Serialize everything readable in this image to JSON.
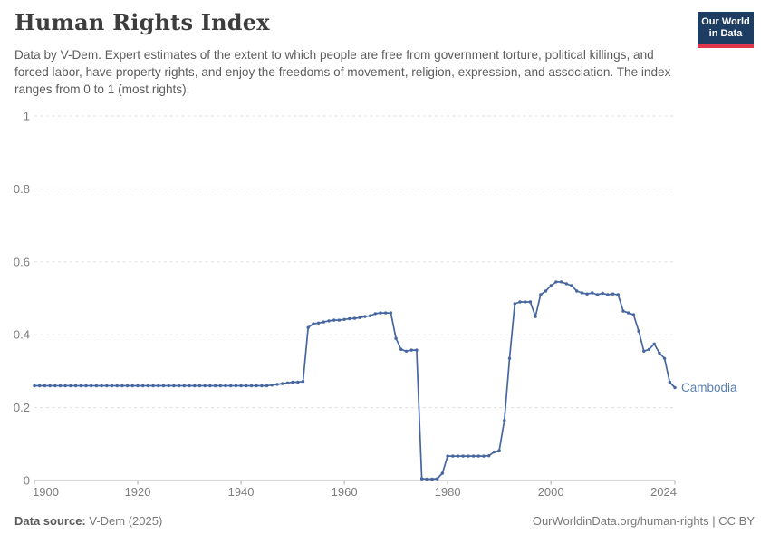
{
  "header": {
    "title": "Human Rights Index",
    "subtitle": "Data by V-Dem. Expert estimates of the extent to which people are free from government torture, political killings, and forced labor, have property rights, and enjoy the freedoms of movement, religion, expression, and association. The index ranges from 0 to 1 (most rights).",
    "logo": {
      "line1": "Our World",
      "line2": "in Data",
      "bg_color": "#1d3d63",
      "accent_color": "#e0354b"
    }
  },
  "chart_data": {
    "type": "line",
    "title": "Human Rights Index",
    "xlabel": "",
    "ylabel": "",
    "xlim": [
      1900,
      2024
    ],
    "ylim": [
      0,
      1
    ],
    "x_ticks": [
      1900,
      1920,
      1940,
      1960,
      1980,
      2000,
      2024
    ],
    "y_ticks": [
      0,
      0.2,
      0.4,
      0.6,
      0.8,
      1
    ],
    "grid": "horizontal-dashed",
    "legend_position": "end-of-line-label",
    "colors": {
      "line": "#4666a0",
      "end_label": "#5b80b2",
      "grid": "#e0e0e0",
      "axis": "#a8a8a8",
      "tick_text": "#7d7d7d"
    },
    "series": [
      {
        "name": "Cambodia",
        "x": [
          1900,
          1901,
          1902,
          1903,
          1904,
          1905,
          1906,
          1907,
          1908,
          1909,
          1910,
          1911,
          1912,
          1913,
          1914,
          1915,
          1916,
          1917,
          1918,
          1919,
          1920,
          1921,
          1922,
          1923,
          1924,
          1925,
          1926,
          1927,
          1928,
          1929,
          1930,
          1931,
          1932,
          1933,
          1934,
          1935,
          1936,
          1937,
          1938,
          1939,
          1940,
          1941,
          1942,
          1943,
          1944,
          1945,
          1946,
          1947,
          1948,
          1949,
          1950,
          1951,
          1952,
          1953,
          1954,
          1955,
          1956,
          1957,
          1958,
          1959,
          1960,
          1961,
          1962,
          1963,
          1964,
          1965,
          1966,
          1967,
          1968,
          1969,
          1970,
          1971,
          1972,
          1973,
          1974,
          1975,
          1976,
          1977,
          1978,
          1979,
          1980,
          1981,
          1982,
          1983,
          1984,
          1985,
          1986,
          1987,
          1988,
          1989,
          1990,
          1991,
          1992,
          1993,
          1994,
          1995,
          1996,
          1997,
          1998,
          1999,
          2000,
          2001,
          2002,
          2003,
          2004,
          2005,
          2006,
          2007,
          2008,
          2009,
          2010,
          2011,
          2012,
          2013,
          2014,
          2015,
          2016,
          2017,
          2018,
          2019,
          2020,
          2021,
          2022,
          2023,
          2024
        ],
        "values": [
          0.26,
          0.26,
          0.26,
          0.26,
          0.26,
          0.26,
          0.26,
          0.26,
          0.26,
          0.26,
          0.26,
          0.26,
          0.26,
          0.26,
          0.26,
          0.26,
          0.26,
          0.26,
          0.26,
          0.26,
          0.26,
          0.26,
          0.26,
          0.26,
          0.26,
          0.26,
          0.26,
          0.26,
          0.26,
          0.26,
          0.26,
          0.26,
          0.26,
          0.26,
          0.26,
          0.26,
          0.26,
          0.26,
          0.26,
          0.26,
          0.26,
          0.26,
          0.26,
          0.26,
          0.26,
          0.26,
          0.262,
          0.264,
          0.266,
          0.268,
          0.27,
          0.27,
          0.272,
          0.42,
          0.43,
          0.432,
          0.435,
          0.438,
          0.44,
          0.44,
          0.442,
          0.444,
          0.445,
          0.447,
          0.45,
          0.452,
          0.458,
          0.46,
          0.46,
          0.46,
          0.39,
          0.36,
          0.355,
          0.358,
          0.358,
          0.005,
          0.004,
          0.004,
          0.005,
          0.02,
          0.067,
          0.067,
          0.067,
          0.067,
          0.067,
          0.067,
          0.067,
          0.067,
          0.068,
          0.078,
          0.082,
          0.165,
          0.335,
          0.485,
          0.49,
          0.49,
          0.49,
          0.45,
          0.51,
          0.52,
          0.535,
          0.545,
          0.545,
          0.54,
          0.535,
          0.52,
          0.515,
          0.512,
          0.515,
          0.51,
          0.514,
          0.51,
          0.512,
          0.51,
          0.465,
          0.46,
          0.455,
          0.41,
          0.355,
          0.36,
          0.375,
          0.35,
          0.335,
          0.27,
          0.255
        ]
      }
    ]
  },
  "footer": {
    "source_label": "Data source:",
    "source_value": " V-Dem (2025)",
    "right_text": "OurWorldinData.org/human-rights | CC BY"
  }
}
